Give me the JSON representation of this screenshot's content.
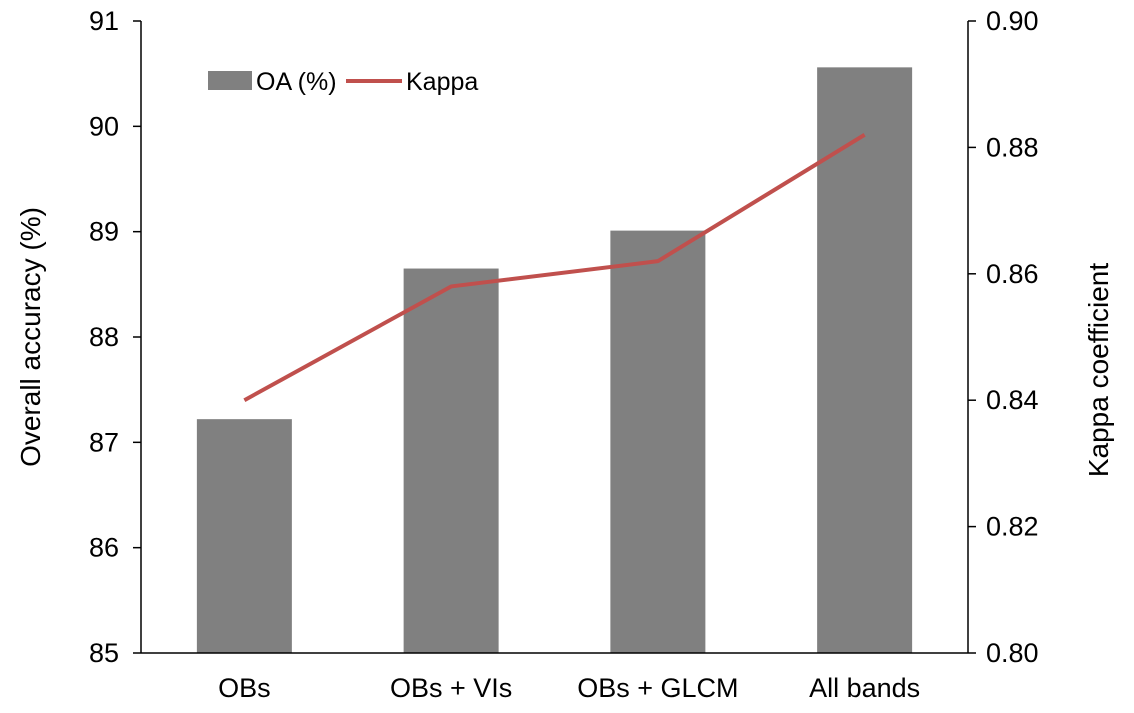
{
  "chart_data": {
    "type": "bar",
    "categories": [
      "OBs",
      "OBs + VIs",
      "OBs + GLCM",
      "All bands"
    ],
    "series": [
      {
        "name": "OA (%)",
        "type": "bar",
        "axis": "left",
        "values": [
          87.22,
          88.65,
          89.01,
          90.56
        ]
      },
      {
        "name": "Kappa",
        "type": "line",
        "axis": "right",
        "values": [
          0.84,
          0.858,
          0.862,
          0.882
        ]
      }
    ],
    "ylabel": "Overall accuracy (%)",
    "y2label": "Kappa coefficient",
    "ylim": [
      85,
      91
    ],
    "y2lim": [
      0.8,
      0.9
    ],
    "yticks": [
      "85",
      "86",
      "87",
      "88",
      "89",
      "90",
      "91"
    ],
    "y2ticks": [
      "0.80",
      "0.82",
      "0.84",
      "0.86",
      "0.88",
      "0.90"
    ],
    "legend_position": "top-left",
    "grid": false,
    "colors": {
      "bar": "#808080",
      "line": "#c0504d",
      "axis": "#000000"
    }
  }
}
